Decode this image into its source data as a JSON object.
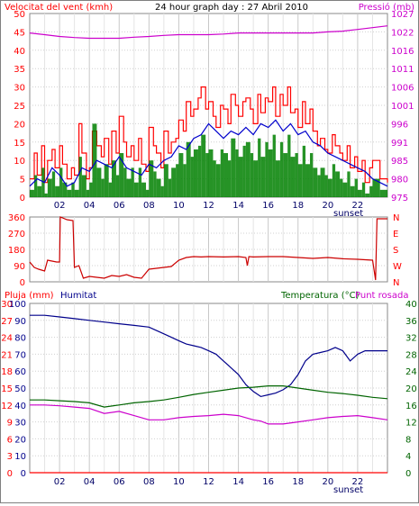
{
  "chart_data": [
    {
      "id": "panel-wind-pressure",
      "type": "line",
      "title": "24 hour graph day : 27 Abril 2010",
      "left_axis_label": "Velocitat del vent (kmh)",
      "right_axis_label": "Pressió (mb)",
      "left_ticks": [
        0,
        5,
        10,
        15,
        20,
        25,
        30,
        35,
        40,
        45,
        50
      ],
      "right_ticks": [
        975,
        980,
        985,
        991,
        996,
        1001,
        1006,
        1011,
        1016,
        1022,
        1027
      ],
      "x_ticks": [
        "02",
        "04",
        "06",
        "08",
        "10",
        "12",
        "14",
        "16",
        "18",
        "20",
        "22"
      ],
      "x_annotation": "sunset",
      "ylim_left": [
        0,
        50
      ],
      "ylim_right": [
        975,
        1027
      ],
      "xlim": [
        0,
        24
      ],
      "grid": true,
      "series": [
        {
          "name": "gust",
          "color": "#ff0000",
          "style": "step",
          "axis": "left",
          "x": [
            0,
            0.3,
            0.5,
            0.8,
            1,
            1.2,
            1.5,
            1.7,
            2,
            2.2,
            2.5,
            2.8,
            3,
            3.3,
            3.5,
            3.8,
            4,
            4.2,
            4.5,
            4.8,
            5,
            5.3,
            5.5,
            5.8,
            6,
            6.3,
            6.5,
            6.8,
            7,
            7.3,
            7.5,
            7.8,
            8,
            8.3,
            8.5,
            8.8,
            9,
            9.3,
            9.5,
            9.8,
            10,
            10.3,
            10.5,
            10.8,
            11,
            11.3,
            11.5,
            11.8,
            12,
            12.3,
            12.5,
            12.8,
            13,
            13.3,
            13.5,
            13.8,
            14,
            14.3,
            14.5,
            14.8,
            15,
            15.3,
            15.5,
            15.8,
            16,
            16.3,
            16.5,
            16.8,
            17,
            17.3,
            17.5,
            17.8,
            18,
            18.3,
            18.5,
            18.8,
            19,
            19.3,
            19.5,
            19.8,
            20,
            20.3,
            20.5,
            20.8,
            21,
            21.3,
            21.5,
            21.8,
            22,
            22.3,
            22.5,
            22.8,
            23,
            23.5,
            24
          ],
          "y": [
            5,
            12,
            6,
            14,
            4,
            10,
            13,
            8,
            14,
            9,
            5,
            8,
            6,
            20,
            12,
            5,
            8,
            18,
            14,
            11,
            16,
            9,
            18,
            12,
            22,
            15,
            11,
            14,
            10,
            16,
            9,
            7,
            19,
            14,
            12,
            8,
            18,
            12,
            15,
            16,
            21,
            18,
            26,
            22,
            24,
            27,
            30,
            24,
            26,
            22,
            19,
            25,
            24,
            20,
            28,
            25,
            22,
            26,
            27,
            24,
            20,
            28,
            23,
            27,
            26,
            30,
            22,
            28,
            25,
            30,
            23,
            24,
            19,
            26,
            20,
            24,
            18,
            14,
            16,
            13,
            12,
            17,
            14,
            12,
            10,
            14,
            8,
            11,
            7,
            10,
            4,
            8,
            10,
            5,
            4
          ]
        },
        {
          "name": "wind",
          "color": "#008000",
          "style": "bar",
          "axis": "left",
          "x": [
            0,
            0.3,
            0.5,
            0.8,
            1,
            1.2,
            1.5,
            1.7,
            2,
            2.2,
            2.5,
            2.8,
            3,
            3.3,
            3.5,
            3.8,
            4,
            4.2,
            4.5,
            4.8,
            5,
            5.3,
            5.5,
            5.8,
            6,
            6.3,
            6.5,
            6.8,
            7,
            7.3,
            7.5,
            7.8,
            8,
            8.3,
            8.5,
            8.8,
            9,
            9.3,
            9.5,
            9.8,
            10,
            10.3,
            10.5,
            10.8,
            11,
            11.3,
            11.5,
            11.8,
            12,
            12.3,
            12.5,
            12.8,
            13,
            13.3,
            13.5,
            13.8,
            14,
            14.3,
            14.5,
            14.8,
            15,
            15.3,
            15.5,
            15.8,
            16,
            16.3,
            16.5,
            16.8,
            17,
            17.3,
            17.5,
            17.8,
            18,
            18.3,
            18.5,
            18.8,
            19,
            19.3,
            19.5,
            19.8,
            20,
            20.3,
            20.5,
            20.8,
            21,
            21.3,
            21.5,
            21.8,
            22,
            22.3,
            22.5,
            22.8,
            23,
            23.5,
            24
          ],
          "y": [
            2,
            6,
            3,
            8,
            1,
            5,
            7,
            3,
            8,
            4,
            2,
            4,
            2,
            11,
            6,
            2,
            4,
            20,
            8,
            5,
            9,
            4,
            10,
            6,
            12,
            8,
            5,
            8,
            4,
            8,
            4,
            2,
            10,
            7,
            5,
            3,
            9,
            5,
            8,
            9,
            12,
            9,
            15,
            11,
            13,
            14,
            17,
            12,
            13,
            10,
            9,
            13,
            12,
            10,
            16,
            13,
            11,
            14,
            15,
            12,
            10,
            16,
            11,
            15,
            13,
            17,
            10,
            15,
            12,
            17,
            11,
            12,
            9,
            14,
            9,
            12,
            8,
            6,
            8,
            6,
            5,
            9,
            7,
            5,
            4,
            7,
            3,
            5,
            2,
            4,
            1,
            3,
            5,
            2,
            1
          ]
        },
        {
          "name": "average",
          "color": "#0000cc",
          "style": "line",
          "axis": "left",
          "x": [
            0,
            0.5,
            1,
            1.5,
            2,
            2.5,
            3,
            3.5,
            4,
            4.5,
            5,
            5.5,
            6,
            6.5,
            7,
            7.5,
            8,
            8.5,
            9,
            9.5,
            10,
            10.5,
            11,
            11.5,
            12,
            12.5,
            13,
            13.5,
            14,
            14.5,
            15,
            15.5,
            16,
            16.5,
            17,
            17.5,
            18,
            18.5,
            19,
            19.5,
            20,
            20.5,
            21,
            21.5,
            22,
            22.5,
            23,
            23.5,
            24
          ],
          "y": [
            3,
            5,
            4,
            8,
            6,
            3,
            4,
            8,
            7,
            10,
            9,
            8,
            11,
            8,
            7,
            6,
            9,
            8,
            10,
            11,
            14,
            13,
            16,
            17,
            20,
            18,
            16,
            18,
            17,
            19,
            17,
            20,
            19,
            21,
            18,
            20,
            17,
            18,
            15,
            14,
            12,
            11,
            10,
            9,
            8,
            7,
            5,
            4,
            3
          ]
        },
        {
          "name": "Pressió",
          "color": "#cc00cc",
          "style": "line",
          "axis": "right",
          "x": [
            0,
            1,
            2,
            3,
            4,
            5,
            6,
            7,
            8,
            9,
            10,
            11,
            12,
            13,
            14,
            15,
            16,
            17,
            18,
            19,
            20,
            21,
            22,
            23,
            24
          ],
          "y": [
            1021.5,
            1021,
            1020.5,
            1020.2,
            1020,
            1020,
            1020,
            1020.3,
            1020.5,
            1020.8,
            1021,
            1021,
            1021,
            1021.2,
            1021.5,
            1021.5,
            1021.5,
            1021.5,
            1021.5,
            1021.5,
            1021.8,
            1022,
            1022.5,
            1023,
            1023.5
          ]
        }
      ]
    },
    {
      "id": "panel-wind-direction",
      "type": "line",
      "left_ticks": [
        0,
        90,
        180,
        270,
        360
      ],
      "right_ticks": [
        "N",
        "E",
        "S",
        "W",
        "N"
      ],
      "x_ticks": [],
      "ylim": [
        0,
        360
      ],
      "xlim": [
        0,
        24
      ],
      "grid": true,
      "series": [
        {
          "name": "direction",
          "color": "#cc0000",
          "style": "line",
          "x": [
            0,
            0.3,
            0.6,
            1,
            1.2,
            1.5,
            1.8,
            2,
            2.05,
            2.5,
            2.9,
            3,
            3.3,
            3.6,
            4,
            4.5,
            5,
            5.5,
            6,
            6.5,
            7,
            7.5,
            8,
            8.5,
            9,
            9.5,
            10,
            10.5,
            11,
            11.5,
            12,
            13,
            14,
            14.5,
            14.6,
            14.7,
            15,
            16,
            17,
            18,
            19,
            20,
            21,
            22,
            23,
            23.2,
            23.3,
            24
          ],
          "y": [
            110,
            80,
            70,
            60,
            120,
            115,
            110,
            110,
            360,
            345,
            340,
            80,
            90,
            20,
            30,
            25,
            20,
            35,
            30,
            40,
            25,
            20,
            70,
            75,
            80,
            85,
            120,
            135,
            140,
            138,
            140,
            138,
            140,
            135,
            90,
            140,
            138,
            140,
            140,
            135,
            130,
            135,
            128,
            125,
            120,
            10,
            350,
            350
          ]
        }
      ]
    },
    {
      "id": "panel-temp-humidity",
      "type": "line",
      "left_axis_label": "Pluja (mm)",
      "left2_axis_label": "Humitat",
      "right_axis_label": "Temperatura (°C)",
      "right2_axis_label": "Punt rosada",
      "left_ticks": [
        0,
        3,
        6,
        9,
        12,
        15,
        18,
        21,
        24,
        27,
        30
      ],
      "left2_ticks": [
        0,
        10,
        20,
        30,
        40,
        50,
        60,
        70,
        80,
        90,
        100
      ],
      "right_ticks": [
        0,
        4,
        8,
        12,
        16,
        20,
        24,
        28,
        32,
        36,
        40
      ],
      "x_ticks": [
        "02",
        "04",
        "06",
        "08",
        "10",
        "12",
        "14",
        "16",
        "18",
        "20",
        "22"
      ],
      "x_annotation": "sunset",
      "ylim_left": [
        0,
        30
      ],
      "ylim_left2": [
        0,
        100
      ],
      "ylim_right": [
        0,
        40
      ],
      "xlim": [
        0,
        24
      ],
      "grid": true,
      "series": [
        {
          "name": "Humitat",
          "color": "#00008b",
          "style": "line",
          "axis": "left2",
          "x": [
            0,
            1,
            2,
            3,
            4,
            5,
            6,
            7,
            8,
            8.5,
            9,
            9.5,
            10,
            10.5,
            11,
            11.5,
            12,
            12.5,
            13,
            13.5,
            14,
            14.5,
            15,
            15.5,
            16,
            16.5,
            17,
            17.5,
            18,
            18.5,
            19,
            19.5,
            20,
            20.5,
            21,
            21.5,
            22,
            22.5,
            23,
            23.5,
            24
          ],
          "y": [
            93,
            93,
            92,
            91,
            90,
            89,
            88,
            87,
            86,
            84,
            82,
            80,
            78,
            76,
            75,
            74,
            72,
            70,
            66,
            62,
            58,
            52,
            48,
            45,
            46,
            47,
            49,
            52,
            58,
            66,
            70,
            71,
            72,
            74,
            72,
            66,
            70,
            72,
            72,
            72,
            72
          ]
        },
        {
          "name": "Temperatura (°C)",
          "color": "#006400",
          "style": "line",
          "axis": "right",
          "x": [
            0,
            1,
            2,
            3,
            4,
            5,
            6,
            7,
            8,
            9,
            10,
            11,
            12,
            13,
            14,
            15,
            16,
            17,
            18,
            19,
            20,
            21,
            22,
            23,
            24
          ],
          "y": [
            17.2,
            17.2,
            17,
            16.8,
            16.5,
            15.5,
            16,
            16.5,
            16.8,
            17.2,
            17.8,
            18.5,
            19,
            19.5,
            20,
            20.2,
            20.5,
            20.5,
            20,
            19.5,
            19,
            18.7,
            18.3,
            17.8,
            17.5
          ]
        },
        {
          "name": "Punt rosada",
          "color": "#cc00cc",
          "style": "line",
          "axis": "right",
          "x": [
            0,
            1,
            2,
            3,
            4,
            5,
            6,
            7,
            8,
            9,
            10,
            11,
            12,
            13,
            14,
            15,
            15.5,
            16,
            17,
            18,
            19,
            20,
            21,
            22,
            23,
            24
          ],
          "y": [
            16,
            16,
            15.8,
            15.5,
            15.2,
            14,
            14.5,
            13.5,
            12.5,
            12.5,
            13,
            13.3,
            13.5,
            13.8,
            13.5,
            12.5,
            12.2,
            11.5,
            11.5,
            12,
            12.5,
            13,
            13.3,
            13.5,
            13,
            12.5
          ]
        },
        {
          "name": "Pluja (mm)",
          "color": "#ff0000",
          "style": "line",
          "axis": "left",
          "x": [
            0,
            24
          ],
          "y": [
            0,
            0
          ]
        }
      ]
    }
  ]
}
